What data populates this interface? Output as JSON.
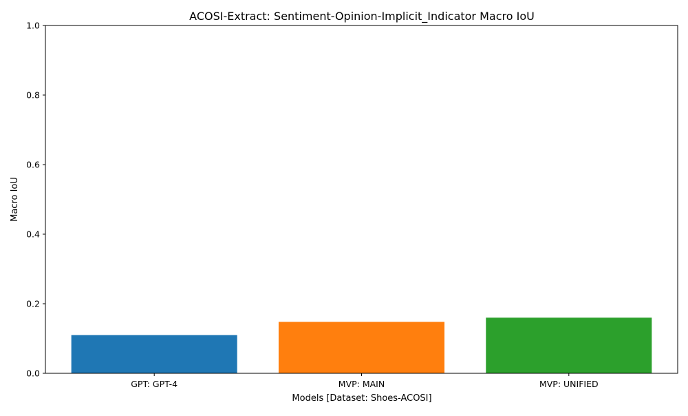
{
  "chart_data": {
    "type": "bar",
    "title": "ACOSI-Extract: Sentiment-Opinion-Implicit_Indicator Macro IoU",
    "xlabel": "Models [Dataset: Shoes-ACOSI]",
    "ylabel": "Macro IoU",
    "ylim": [
      0,
      1
    ],
    "yticks": [
      "0.0",
      "0.2",
      "0.4",
      "0.6",
      "0.8",
      "1.0"
    ],
    "categories": [
      "GPT: GPT-4",
      "MVP: MAIN",
      "MVP: UNIFIED"
    ],
    "values": [
      0.11,
      0.148,
      0.16
    ],
    "colors": [
      "#1f77b4",
      "#ff7f0e",
      "#2ca02c"
    ],
    "grid": false,
    "legend": "none"
  }
}
